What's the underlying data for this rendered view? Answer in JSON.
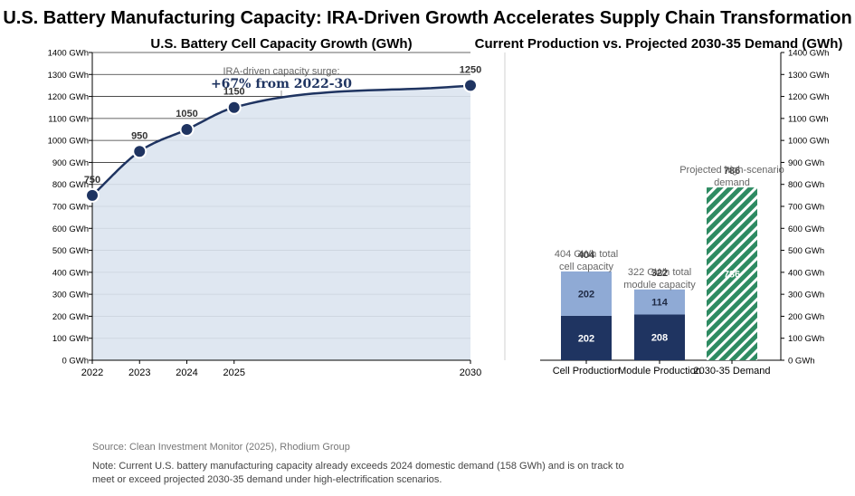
{
  "title": "U.S. Battery Manufacturing Capacity: IRA-Driven Growth Accelerates Supply Chain Transformation",
  "source": "Source: Clean Investment Monitor (2025), Rhodium Group",
  "note": "Note: Current U.S. battery manufacturing capacity already exceeds 2024 domestic demand (158 GWh) and is on track to meet or exceed projected 2030-35 demand under high-electrification scenarios.",
  "colors": {
    "navy": "#1f3461",
    "light_blue": "#8faad5",
    "area_fill": "#dce4f0",
    "green": "#2e8b62",
    "annotation_text": "#666666",
    "grid": "#333333"
  },
  "chart_data": [
    {
      "type": "area",
      "title": "U.S. Battery Cell Capacity Growth (GWh)",
      "x": [
        2022,
        2023,
        2024,
        2025,
        2030
      ],
      "y": [
        750,
        950,
        1050,
        1150,
        1250
      ],
      "data_labels": [
        "750",
        "950",
        "1050",
        "1150",
        "1250"
      ],
      "x_ticks": [
        "2022",
        "2023",
        "2024",
        "2025",
        "2030"
      ],
      "ylim": [
        0,
        1400
      ],
      "y_ticks": [
        "0 GWh",
        "100 GWh",
        "200 GWh",
        "300 GWh",
        "400 GWh",
        "500 GWh",
        "600 GWh",
        "700 GWh",
        "800 GWh",
        "900 GWh",
        "1000 GWh",
        "1100 GWh",
        "1200 GWh",
        "1300 GWh",
        "1400 GWh"
      ],
      "grid": true,
      "annotation": {
        "line1": "IRA-driven capacity surge:",
        "line2": "+67% from 2022-30"
      }
    },
    {
      "type": "bar",
      "stacked": true,
      "title": "Current Production vs. Projected 2030-35 Demand (GWh)",
      "categories": [
        "Cell Production",
        "Module Production",
        "2030-35 Demand"
      ],
      "series": [
        {
          "values": [
            202,
            208,
            null
          ],
          "color": "#1f3461"
        },
        {
          "values": [
            202,
            114,
            null
          ],
          "color": "#8faad5"
        },
        {
          "values": [
            null,
            null,
            786
          ],
          "color": "#2e8b62",
          "pattern": "hatched"
        }
      ],
      "totals": [
        404,
        322,
        786
      ],
      "total_labels": [
        "404",
        "322",
        "786"
      ],
      "segment_labels": [
        [
          "202",
          "202"
        ],
        [
          "208",
          "114"
        ],
        [
          "786"
        ]
      ],
      "annotations": [
        "404 GWh total cell capacity",
        "322 GWh total module capacity",
        "Projected high-scenario demand"
      ],
      "ylim": [
        0,
        1400
      ],
      "y_ticks": [
        "0 GWh",
        "100 GWh",
        "200 GWh",
        "300 GWh",
        "400 GWh",
        "500 GWh",
        "600 GWh",
        "700 GWh",
        "800 GWh",
        "900 GWh",
        "1000 GWh",
        "1100 GWh",
        "1200 GWh",
        "1300 GWh",
        "1400 GWh"
      ],
      "y_axis_side": "right",
      "grid": false
    }
  ]
}
